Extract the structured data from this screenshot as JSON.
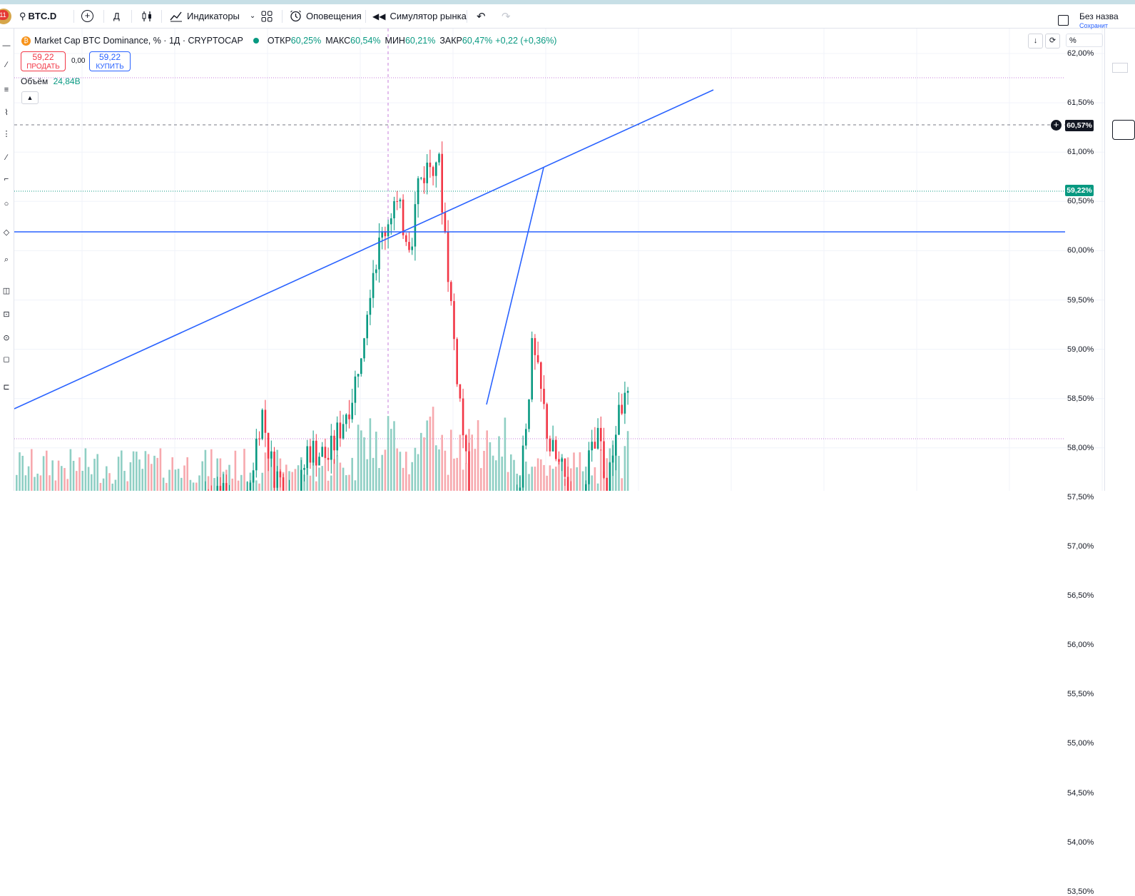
{
  "toolbar": {
    "notification_count": "11",
    "symbol": "BTC.D",
    "interval": "Д",
    "indicators_label": "Индикаторы",
    "alerts_label": "Оповещения",
    "replay_label": "Симулятор рынка",
    "save_title": "Без назва",
    "save_subtitle": "Сохранит"
  },
  "legend": {
    "title": "Market Cap BTC Dominance, % · 1Д · CRYPTOCAP",
    "open_label": "ОТКР",
    "open_value": "60,25%",
    "high_label": "МАКС",
    "high_value": "60,54%",
    "low_label": "МИН",
    "low_value": "60,21%",
    "close_label": "ЗАКР",
    "close_value": "60,47%",
    "change": "+0,22 (+0,36%)"
  },
  "trade": {
    "sell_price": "59,22",
    "sell_label": "ПРОДАТЬ",
    "spread": "0,00",
    "buy_price": "59,22",
    "buy_label": "КУПИТЬ"
  },
  "volume": {
    "label": "Объём",
    "value": "24,84B"
  },
  "axis": {
    "percent_label": "%",
    "ticks": [
      "62,00%",
      "61,50%",
      "61,00%",
      "60,50%",
      "60,00%",
      "59,50%",
      "59,00%",
      "58,50%",
      "58,00%",
      "57,50%",
      "57,00%",
      "56,50%",
      "56,00%",
      "55,50%",
      "55,00%",
      "54,50%",
      "54,00%",
      "53,50%"
    ],
    "last_price_tag": "59,22%",
    "crosshair_tag": "60,57%"
  },
  "colors": {
    "up": "#089981",
    "down": "#f23645",
    "drawing": "#2962ff",
    "up_volume": "#8fcfc4",
    "down_volume": "#f7a9ae"
  },
  "icons": [
    "search-icon",
    "add-symbol-icon",
    "candles-icon",
    "indicators-icon",
    "templates-icon",
    "alert-icon",
    "replay-icon",
    "undo-icon",
    "redo-icon",
    "btc-icon"
  ]
}
